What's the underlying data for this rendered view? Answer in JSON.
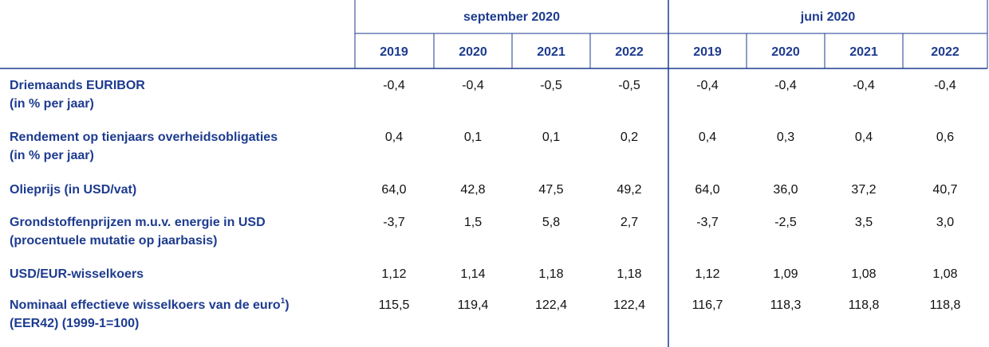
{
  "header": {
    "groups": [
      "september 2020",
      "juni 2020"
    ],
    "years": [
      [
        "2019",
        "2020",
        "2021",
        "2022"
      ],
      [
        "2019",
        "2020",
        "2021",
        "2022"
      ]
    ]
  },
  "rows": [
    {
      "label": [
        "Driemaands EURIBOR",
        "(in % per jaar)"
      ],
      "values": [
        [
          "-0,4",
          "-0,4",
          "-0,5",
          "-0,5"
        ],
        [
          "-0,4",
          "-0,4",
          "-0,4",
          "-0,4"
        ]
      ]
    },
    {
      "label": [
        "Rendement op tienjaars overheidsobligaties",
        "(in % per jaar)"
      ],
      "values": [
        [
          "0,4",
          "0,1",
          "0,1",
          "0,2"
        ],
        [
          "0,4",
          "0,3",
          "0,4",
          "0,6"
        ]
      ]
    },
    {
      "label": [
        "Olieprijs (in USD/vat)"
      ],
      "values": [
        [
          "64,0",
          "42,8",
          "47,5",
          "49,2"
        ],
        [
          "64,0",
          "36,0",
          "37,2",
          "40,7"
        ]
      ]
    },
    {
      "label": [
        "Grondstoffenprijzen m.u.v. energie in USD",
        "(procentuele mutatie op jaarbasis)"
      ],
      "values": [
        [
          "-3,7",
          "1,5",
          "5,8",
          "2,7"
        ],
        [
          "-3,7",
          "-2,5",
          "3,5",
          "3,0"
        ]
      ]
    },
    {
      "label": [
        "USD/EUR-wisselkoers"
      ],
      "values": [
        [
          "1,12",
          "1,14",
          "1,18",
          "1,18"
        ],
        [
          "1,12",
          "1,09",
          "1,08",
          "1,08"
        ]
      ]
    },
    {
      "label": [
        "Nominaal effectieve wisselkoers van de euro",
        "(EER42) (1999-1=100)"
      ],
      "footnote_mark": "1",
      "label_close": ")",
      "values": [
        [
          "115,5",
          "119,4",
          "122,4",
          "122,4"
        ],
        [
          "116,7",
          "118,3",
          "118,8",
          "118,8"
        ]
      ]
    }
  ]
}
